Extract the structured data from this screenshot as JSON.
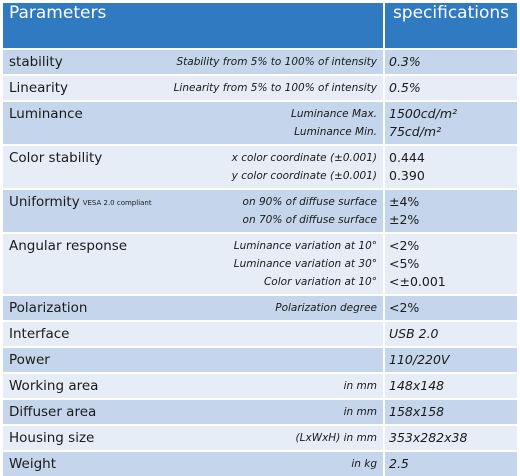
{
  "header": {
    "parameters": "Parameters",
    "specifications": "specifications"
  },
  "rows": [
    {
      "name": "stability",
      "conditions": [
        "Stability from 5% to 100% of intensity"
      ],
      "values": [
        "0.3%"
      ]
    },
    {
      "name": "Linearity",
      "conditions": [
        "Linearity from 5% to 100% of intensity"
      ],
      "values": [
        "0.5%"
      ]
    },
    {
      "name": "Luminance",
      "conditions": [
        "Luminance Max.",
        "Luminance Min."
      ],
      "values": [
        "1500cd/m²",
        "75cd/m²"
      ]
    },
    {
      "name": "Color stability",
      "conditions": [
        "x color coordinate (±0.001)",
        "y color coordinate (±0.001)"
      ],
      "values": [
        "0.444",
        "0.390"
      ]
    },
    {
      "name": "Uniformity",
      "note": "VESA 2.0 compliant",
      "conditions": [
        "on 90% of diffuse surface",
        "on 70% of diffuse surface"
      ],
      "values": [
        "±4%",
        "±2%"
      ]
    },
    {
      "name": "Angular response",
      "conditions": [
        "Luminance variation at 10°",
        "Luminance variation at 30°",
        "Color variation at 10°"
      ],
      "values": [
        "<2%",
        "<5%",
        "<±0.001"
      ]
    },
    {
      "name": "Polarization",
      "conditions": [
        "Polarization degree"
      ],
      "values": [
        "<2%"
      ]
    },
    {
      "name": "Interface",
      "conditions": [],
      "values": [
        "USB 2.0"
      ]
    },
    {
      "name": "Power",
      "conditions": [],
      "values": [
        "110/220V"
      ]
    },
    {
      "name": "Working area",
      "conditions": [
        "in mm"
      ],
      "values": [
        "148x148"
      ]
    },
    {
      "name": "Diffuser area",
      "conditions": [
        "in mm"
      ],
      "values": [
        "158x158"
      ]
    },
    {
      "name": "Housing size",
      "conditions": [
        "(LxWxH) in mm"
      ],
      "values": [
        "353x282x38"
      ]
    },
    {
      "name": "Weight",
      "conditions": [
        "in kg"
      ],
      "values": [
        "2.5"
      ]
    }
  ]
}
